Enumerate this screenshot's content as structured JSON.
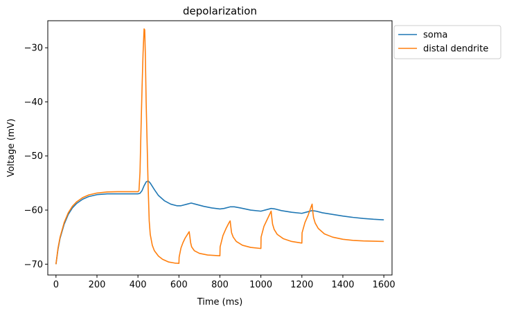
{
  "chart_data": {
    "type": "line",
    "title": "depolarization",
    "xlabel": "Time (ms)",
    "ylabel": "Voltage (mV)",
    "xlim": [
      -40,
      1640
    ],
    "ylim": [
      -72,
      -25
    ],
    "xticks": [
      0,
      200,
      400,
      600,
      800,
      1000,
      1200,
      1400,
      1600
    ],
    "yticks": [
      -70,
      -60,
      -50,
      -40,
      -30
    ],
    "ytick_labels": [
      "−70",
      "−60",
      "−50",
      "−40",
      "−30"
    ],
    "grid": false,
    "legend_position": "outside-upper-right",
    "series": [
      {
        "name": "soma",
        "color": "#1f77b4",
        "points": [
          [
            0,
            -70
          ],
          [
            10,
            -67.2
          ],
          [
            20,
            -65.2
          ],
          [
            40,
            -62.6
          ],
          [
            60,
            -60.8
          ],
          [
            80,
            -59.6
          ],
          [
            100,
            -58.8
          ],
          [
            130,
            -58.0
          ],
          [
            160,
            -57.5
          ],
          [
            200,
            -57.15
          ],
          [
            250,
            -57.0
          ],
          [
            300,
            -57.0
          ],
          [
            350,
            -57.0
          ],
          [
            400,
            -57.0
          ],
          [
            410,
            -56.9
          ],
          [
            420,
            -56.4
          ],
          [
            430,
            -55.5
          ],
          [
            440,
            -54.8
          ],
          [
            450,
            -54.6
          ],
          [
            460,
            -55.0
          ],
          [
            480,
            -56.2
          ],
          [
            500,
            -57.3
          ],
          [
            530,
            -58.3
          ],
          [
            560,
            -58.9
          ],
          [
            590,
            -59.2
          ],
          [
            610,
            -59.2
          ],
          [
            640,
            -58.9
          ],
          [
            660,
            -58.7
          ],
          [
            680,
            -58.9
          ],
          [
            720,
            -59.3
          ],
          [
            760,
            -59.6
          ],
          [
            800,
            -59.8
          ],
          [
            820,
            -59.7
          ],
          [
            850,
            -59.4
          ],
          [
            870,
            -59.4
          ],
          [
            900,
            -59.6
          ],
          [
            950,
            -60.0
          ],
          [
            1000,
            -60.2
          ],
          [
            1020,
            -60.0
          ],
          [
            1050,
            -59.7
          ],
          [
            1070,
            -59.8
          ],
          [
            1100,
            -60.1
          ],
          [
            1150,
            -60.4
          ],
          [
            1200,
            -60.6
          ],
          [
            1220,
            -60.4
          ],
          [
            1250,
            -60.1
          ],
          [
            1270,
            -60.2
          ],
          [
            1300,
            -60.5
          ],
          [
            1350,
            -60.8
          ],
          [
            1400,
            -61.1
          ],
          [
            1450,
            -61.35
          ],
          [
            1500,
            -61.55
          ],
          [
            1550,
            -61.7
          ],
          [
            1600,
            -61.8
          ]
        ]
      },
      {
        "name": "distal dendrite",
        "color": "#ff7f0e",
        "points": [
          [
            0,
            -70
          ],
          [
            10,
            -67.0
          ],
          [
            20,
            -65.0
          ],
          [
            40,
            -62.3
          ],
          [
            60,
            -60.5
          ],
          [
            80,
            -59.3
          ],
          [
            100,
            -58.5
          ],
          [
            130,
            -57.7
          ],
          [
            160,
            -57.2
          ],
          [
            200,
            -56.85
          ],
          [
            250,
            -56.65
          ],
          [
            300,
            -56.6
          ],
          [
            350,
            -56.6
          ],
          [
            400,
            -56.6
          ],
          [
            405,
            -56.4
          ],
          [
            410,
            -53.0
          ],
          [
            415,
            -45.0
          ],
          [
            420,
            -37.5
          ],
          [
            425,
            -31.0
          ],
          [
            430,
            -26.5
          ],
          [
            433,
            -26.7
          ],
          [
            436,
            -31.0
          ],
          [
            440,
            -40.0
          ],
          [
            445,
            -48.0
          ],
          [
            450,
            -56.0
          ],
          [
            455,
            -62.0
          ],
          [
            460,
            -64.5
          ],
          [
            470,
            -66.5
          ],
          [
            480,
            -67.5
          ],
          [
            500,
            -68.5
          ],
          [
            520,
            -69.1
          ],
          [
            550,
            -69.6
          ],
          [
            580,
            -69.8
          ],
          [
            600,
            -69.85
          ],
          [
            601,
            -68.7
          ],
          [
            610,
            -67.0
          ],
          [
            620,
            -66.0
          ],
          [
            630,
            -65.2
          ],
          [
            645,
            -64.3
          ],
          [
            650,
            -64.0
          ],
          [
            653,
            -64.8
          ],
          [
            657,
            -66.0
          ],
          [
            662,
            -66.8
          ],
          [
            675,
            -67.5
          ],
          [
            700,
            -68.0
          ],
          [
            740,
            -68.3
          ],
          [
            780,
            -68.4
          ],
          [
            800,
            -68.45
          ],
          [
            801,
            -66.8
          ],
          [
            815,
            -64.7
          ],
          [
            830,
            -63.4
          ],
          [
            845,
            -62.3
          ],
          [
            850,
            -62.0
          ],
          [
            853,
            -63.0
          ],
          [
            857,
            -64.2
          ],
          [
            865,
            -65.0
          ],
          [
            880,
            -65.8
          ],
          [
            910,
            -66.5
          ],
          [
            950,
            -66.9
          ],
          [
            1000,
            -67.1
          ],
          [
            1001,
            -65.0
          ],
          [
            1015,
            -63.0
          ],
          [
            1030,
            -61.8
          ],
          [
            1045,
            -60.6
          ],
          [
            1050,
            -60.2
          ],
          [
            1053,
            -61.3
          ],
          [
            1057,
            -62.6
          ],
          [
            1065,
            -63.6
          ],
          [
            1080,
            -64.5
          ],
          [
            1110,
            -65.3
          ],
          [
            1150,
            -65.8
          ],
          [
            1200,
            -66.1
          ],
          [
            1201,
            -64.2
          ],
          [
            1215,
            -62.3
          ],
          [
            1230,
            -61.0
          ],
          [
            1245,
            -59.4
          ],
          [
            1250,
            -58.9
          ],
          [
            1253,
            -60.2
          ],
          [
            1257,
            -61.4
          ],
          [
            1265,
            -62.4
          ],
          [
            1280,
            -63.4
          ],
          [
            1310,
            -64.4
          ],
          [
            1350,
            -65.0
          ],
          [
            1400,
            -65.4
          ],
          [
            1450,
            -65.6
          ],
          [
            1500,
            -65.7
          ],
          [
            1550,
            -65.75
          ],
          [
            1600,
            -65.8
          ]
        ]
      }
    ]
  }
}
